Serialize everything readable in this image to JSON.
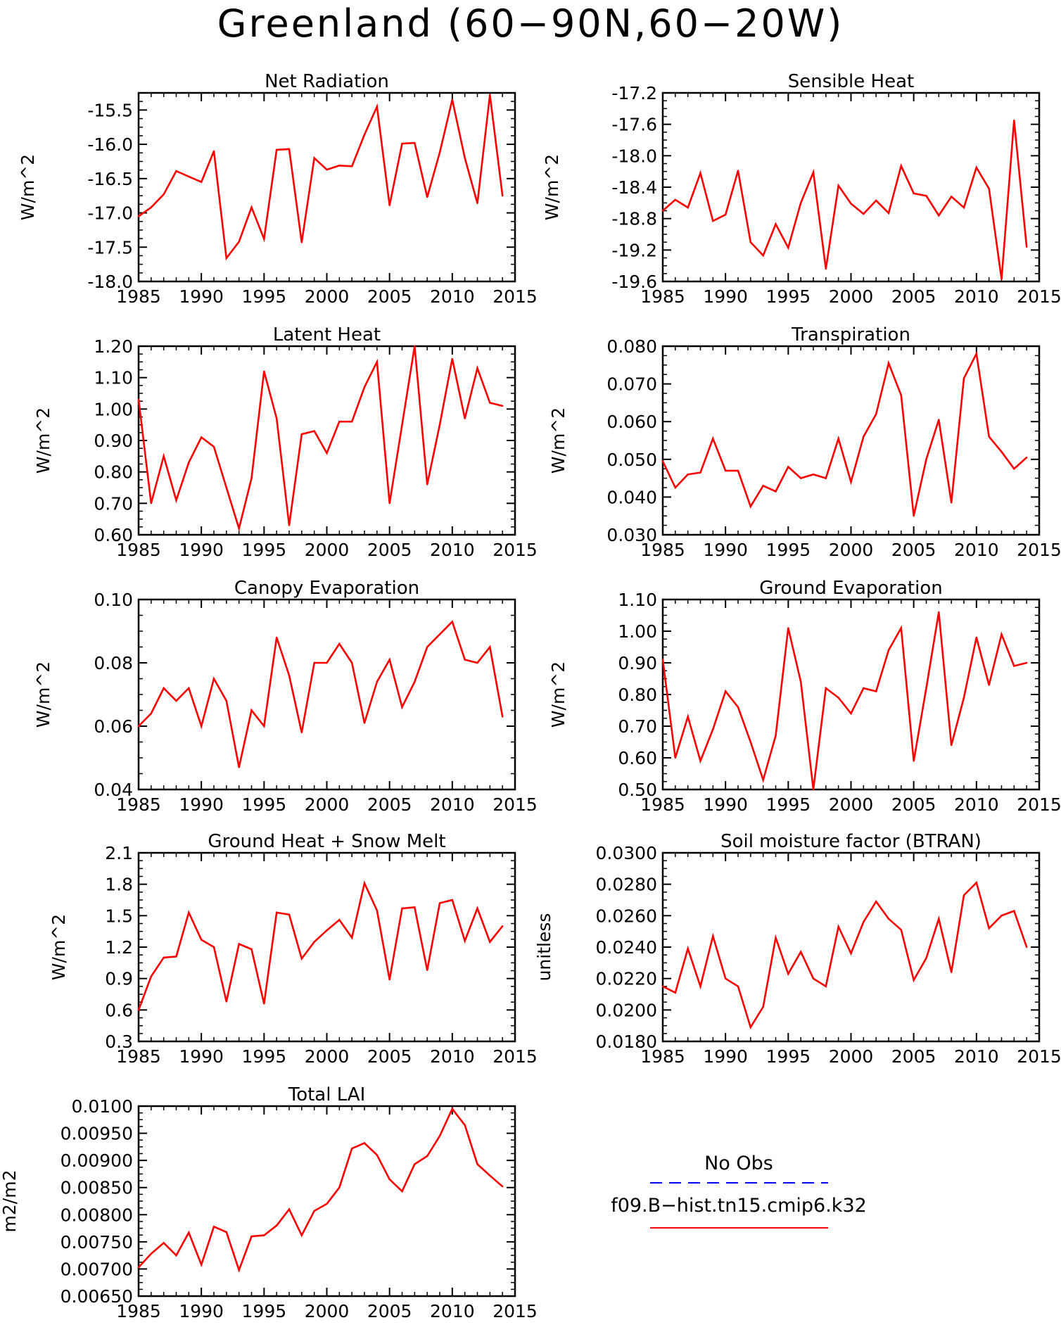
{
  "figure": {
    "title": "Greenland (60−90N,60−20W)"
  },
  "colors": {
    "model": "#ff0000",
    "obs": "#0000ff",
    "axes": "#000000"
  },
  "chart_data": [
    {
      "id": "net-radiation",
      "type": "line",
      "title": "Net Radiation",
      "ylabel": "W/m^2",
      "xlim": [
        1985,
        2015
      ],
      "ylim": [
        -18.0,
        -15.25
      ],
      "xticks": [
        1985,
        1990,
        1995,
        2000,
        2005,
        2010,
        2015
      ],
      "yticks": [
        "-18.0",
        "-17.5",
        "-17.0",
        "-16.5",
        "-16.0",
        "-15.5"
      ],
      "x": [
        1985,
        1986,
        1987,
        1988,
        1989,
        1990,
        1991,
        1992,
        1993,
        1994,
        1995,
        1996,
        1997,
        1998,
        1999,
        2000,
        2001,
        2002,
        2003,
        2004,
        2005,
        2006,
        2007,
        2008,
        2009,
        2010,
        2011,
        2012,
        2013,
        2014
      ],
      "series": [
        {
          "name": "f09.B−hist.tn15.cmip6.k32",
          "values": [
            -17.05,
            -16.92,
            -16.73,
            -16.39,
            -16.47,
            -16.55,
            -16.1,
            -17.66,
            -17.42,
            -16.92,
            -17.38,
            -16.08,
            -16.07,
            -17.43,
            -16.2,
            -16.37,
            -16.31,
            -16.32,
            -15.86,
            -15.45,
            -16.89,
            -15.99,
            -15.98,
            -16.77,
            -16.12,
            -15.35,
            -16.2,
            -16.86,
            -15.28,
            -16.75
          ]
        }
      ]
    },
    {
      "id": "sensible-heat",
      "type": "line",
      "title": "Sensible Heat",
      "ylabel": "W/m^2",
      "xlim": [
        1985,
        2015
      ],
      "ylim": [
        -19.6,
        -17.2
      ],
      "xticks": [
        1985,
        1990,
        1995,
        2000,
        2005,
        2010,
        2015
      ],
      "yticks": [
        "-19.6",
        "-19.2",
        "-18.8",
        "-18.4",
        "-18.0",
        "-17.6",
        "-17.2"
      ],
      "x": [
        1985,
        1986,
        1987,
        1988,
        1989,
        1990,
        1991,
        1992,
        1993,
        1994,
        1995,
        1996,
        1997,
        1998,
        1999,
        2000,
        2001,
        2002,
        2003,
        2004,
        2005,
        2006,
        2007,
        2008,
        2009,
        2010,
        2011,
        2012,
        2013,
        2014
      ],
      "series": [
        {
          "name": "f09.B−hist.tn15.cmip6.k32",
          "values": [
            -18.7,
            -18.56,
            -18.66,
            -18.22,
            -18.83,
            -18.75,
            -18.19,
            -19.1,
            -19.27,
            -18.87,
            -19.17,
            -18.6,
            -18.21,
            -19.44,
            -18.38,
            -18.61,
            -18.74,
            -18.57,
            -18.73,
            -18.13,
            -18.48,
            -18.51,
            -18.76,
            -18.52,
            -18.66,
            -18.15,
            -18.42,
            -19.57,
            -17.55,
            -19.16
          ]
        }
      ]
    },
    {
      "id": "latent-heat",
      "type": "line",
      "title": "Latent Heat",
      "ylabel": "W/m^2",
      "xlim": [
        1985,
        2015
      ],
      "ylim": [
        0.6,
        1.2
      ],
      "xticks": [
        1985,
        1990,
        1995,
        2000,
        2005,
        2010,
        2015
      ],
      "yticks": [
        "0.60",
        "0.70",
        "0.80",
        "0.90",
        "1.00",
        "1.10",
        "1.20"
      ],
      "x": [
        1985,
        1986,
        1987,
        1988,
        1989,
        1990,
        1991,
        1992,
        1993,
        1994,
        1995,
        1996,
        1997,
        1998,
        1999,
        2000,
        2001,
        2002,
        2003,
        2004,
        2005,
        2006,
        2007,
        2008,
        2009,
        2010,
        2011,
        2012,
        2013,
        2014
      ],
      "series": [
        {
          "name": "f09.B−hist.tn15.cmip6.k32",
          "values": [
            1.03,
            0.7,
            0.85,
            0.71,
            0.83,
            0.91,
            0.88,
            0.75,
            0.62,
            0.78,
            1.12,
            0.97,
            0.63,
            0.92,
            0.93,
            0.86,
            0.96,
            0.96,
            1.07,
            1.15,
            0.7,
            0.95,
            1.2,
            0.76,
            0.95,
            1.16,
            0.97,
            1.13,
            1.02,
            1.01
          ]
        }
      ]
    },
    {
      "id": "transpiration",
      "type": "line",
      "title": "Transpiration",
      "ylabel": "W/m^2",
      "xlim": [
        1985,
        2015
      ],
      "ylim": [
        0.03,
        0.08
      ],
      "xticks": [
        1985,
        1990,
        1995,
        2000,
        2005,
        2010,
        2015
      ],
      "yticks": [
        "0.030",
        "0.040",
        "0.050",
        "0.060",
        "0.070",
        "0.080"
      ],
      "x": [
        1985,
        1986,
        1987,
        1988,
        1989,
        1990,
        1991,
        1992,
        1993,
        1994,
        1995,
        1996,
        1997,
        1998,
        1999,
        2000,
        2001,
        2002,
        2003,
        2004,
        2005,
        2006,
        2007,
        2008,
        2009,
        2010,
        2011,
        2012,
        2013,
        2014
      ],
      "series": [
        {
          "name": "f09.B−hist.tn15.cmip6.k32",
          "values": [
            0.0495,
            0.0425,
            0.046,
            0.0465,
            0.0555,
            0.047,
            0.047,
            0.0375,
            0.043,
            0.0415,
            0.048,
            0.045,
            0.046,
            0.045,
            0.0555,
            0.044,
            0.056,
            0.062,
            0.0755,
            0.067,
            0.035,
            0.05,
            0.0605,
            0.0385,
            0.0715,
            0.078,
            0.056,
            0.052,
            0.0475,
            0.0505
          ]
        }
      ]
    },
    {
      "id": "canopy-evaporation",
      "type": "line",
      "title": "Canopy Evaporation",
      "ylabel": "W/m^2",
      "xlim": [
        1985,
        2015
      ],
      "ylim": [
        0.04,
        0.1
      ],
      "xticks": [
        1985,
        1990,
        1995,
        2000,
        2005,
        2010,
        2015
      ],
      "yticks": [
        "0.04",
        "0.06",
        "0.08",
        "0.10"
      ],
      "x": [
        1985,
        1986,
        1987,
        1988,
        1989,
        1990,
        1991,
        1992,
        1993,
        1994,
        1995,
        1996,
        1997,
        1998,
        1999,
        2000,
        2001,
        2002,
        2003,
        2004,
        2005,
        2006,
        2007,
        2008,
        2009,
        2010,
        2011,
        2012,
        2013,
        2014
      ],
      "series": [
        {
          "name": "f09.B−hist.tn15.cmip6.k32",
          "values": [
            0.06,
            0.064,
            0.072,
            0.068,
            0.072,
            0.06,
            0.075,
            0.068,
            0.047,
            0.065,
            0.06,
            0.088,
            0.076,
            0.058,
            0.08,
            0.08,
            0.086,
            0.08,
            0.061,
            0.074,
            0.081,
            0.066,
            0.074,
            0.085,
            0.089,
            0.093,
            0.081,
            0.08,
            0.085,
            0.063
          ]
        }
      ]
    },
    {
      "id": "ground-evaporation",
      "type": "line",
      "title": "Ground Evaporation",
      "ylabel": "W/m^2",
      "xlim": [
        1985,
        2015
      ],
      "ylim": [
        0.5,
        1.1
      ],
      "xticks": [
        1985,
        1990,
        1995,
        2000,
        2005,
        2010,
        2015
      ],
      "yticks": [
        "0.50",
        "0.60",
        "0.70",
        "0.80",
        "0.90",
        "1.00",
        "1.10"
      ],
      "x": [
        1985,
        1986,
        1987,
        1988,
        1989,
        1990,
        1991,
        1992,
        1993,
        1994,
        1995,
        1996,
        1997,
        1998,
        1999,
        2000,
        2001,
        2002,
        2003,
        2004,
        2005,
        2006,
        2007,
        2008,
        2009,
        2010,
        2011,
        2012,
        2013,
        2014
      ],
      "series": [
        {
          "name": "f09.B−hist.tn15.cmip6.k32",
          "values": [
            0.91,
            0.6,
            0.73,
            0.59,
            0.69,
            0.81,
            0.76,
            0.65,
            0.53,
            0.67,
            1.01,
            0.84,
            0.5,
            0.82,
            0.79,
            0.74,
            0.82,
            0.81,
            0.94,
            1.01,
            0.59,
            0.82,
            1.06,
            0.64,
            0.79,
            0.98,
            0.83,
            0.99,
            0.89,
            0.9
          ]
        }
      ]
    },
    {
      "id": "ground-heat-snow-melt",
      "type": "line",
      "title": "Ground Heat + Snow Melt",
      "ylabel": "W/m^2",
      "xlim": [
        1985,
        2015
      ],
      "ylim": [
        0.3,
        2.1
      ],
      "xticks": [
        1985,
        1990,
        1995,
        2000,
        2005,
        2010,
        2015
      ],
      "yticks": [
        "0.3",
        "0.6",
        "0.9",
        "1.2",
        "1.5",
        "1.8",
        "2.1"
      ],
      "x": [
        1985,
        1986,
        1987,
        1988,
        1989,
        1990,
        1991,
        1992,
        1993,
        1994,
        1995,
        1996,
        1997,
        1998,
        1999,
        2000,
        2001,
        2002,
        2003,
        2004,
        2005,
        2006,
        2007,
        2008,
        2009,
        2010,
        2011,
        2012,
        2013,
        2014
      ],
      "series": [
        {
          "name": "f09.B−hist.tn15.cmip6.k32",
          "values": [
            0.6,
            0.92,
            1.1,
            1.11,
            1.53,
            1.27,
            1.2,
            0.68,
            1.23,
            1.18,
            0.66,
            1.53,
            1.51,
            1.09,
            1.25,
            1.36,
            1.46,
            1.29,
            1.81,
            1.55,
            0.89,
            1.57,
            1.58,
            0.98,
            1.62,
            1.65,
            1.26,
            1.57,
            1.25,
            1.4
          ]
        }
      ]
    },
    {
      "id": "soil-moisture-factor",
      "type": "line",
      "title": "Soil moisture factor (BTRAN)",
      "ylabel": "unitless",
      "xlim": [
        1985,
        2015
      ],
      "ylim": [
        0.018,
        0.03
      ],
      "xticks": [
        1985,
        1990,
        1995,
        2000,
        2005,
        2010,
        2015
      ],
      "yticks": [
        "0.0180",
        "0.0200",
        "0.0220",
        "0.0240",
        "0.0260",
        "0.0280",
        "0.0300"
      ],
      "x": [
        1985,
        1986,
        1987,
        1988,
        1989,
        1990,
        1991,
        1992,
        1993,
        1994,
        1995,
        1996,
        1997,
        1998,
        1999,
        2000,
        2001,
        2002,
        2003,
        2004,
        2005,
        2006,
        2007,
        2008,
        2009,
        2010,
        2011,
        2012,
        2013,
        2014
      ],
      "series": [
        {
          "name": "f09.B−hist.tn15.cmip6.k32",
          "values": [
            0.0215,
            0.0211,
            0.0239,
            0.0215,
            0.0247,
            0.022,
            0.0215,
            0.0189,
            0.0202,
            0.0246,
            0.0223,
            0.0237,
            0.022,
            0.0215,
            0.0253,
            0.0236,
            0.0256,
            0.0269,
            0.0258,
            0.0251,
            0.0219,
            0.0233,
            0.0258,
            0.0224,
            0.0273,
            0.0281,
            0.0252,
            0.026,
            0.0263,
            0.024
          ]
        }
      ]
    },
    {
      "id": "total-lai",
      "type": "line",
      "title": "Total LAI",
      "ylabel": "m2/m2",
      "xlim": [
        1985,
        2015
      ],
      "ylim": [
        0.0065,
        0.01
      ],
      "xticks": [
        1985,
        1990,
        1995,
        2000,
        2005,
        2010,
        2015
      ],
      "yticks": [
        "0.00650",
        "0.00700",
        "0.00750",
        "0.00800",
        "0.00850",
        "0.00900",
        "0.00950",
        "0.0100"
      ],
      "x": [
        1985,
        1986,
        1987,
        1988,
        1989,
        1990,
        1991,
        1992,
        1993,
        1994,
        1995,
        1996,
        1997,
        1998,
        1999,
        2000,
        2001,
        2002,
        2003,
        2004,
        2005,
        2006,
        2007,
        2008,
        2009,
        2010,
        2011,
        2012,
        2013,
        2014
      ],
      "series": [
        {
          "name": "f09.B−hist.tn15.cmip6.k32",
          "values": [
            0.00703,
            0.00728,
            0.00748,
            0.00725,
            0.00767,
            0.00708,
            0.00778,
            0.00768,
            0.00698,
            0.0076,
            0.00762,
            0.0078,
            0.0081,
            0.00762,
            0.00807,
            0.0082,
            0.0085,
            0.00922,
            0.00932,
            0.0091,
            0.00865,
            0.00843,
            0.00893,
            0.00908,
            0.00945,
            0.00995,
            0.00965,
            0.00893,
            0.00872,
            0.00852
          ]
        }
      ]
    }
  ],
  "legend": {
    "obs_label": "No Obs",
    "model_label": "f09.B−hist.tn15.cmip6.k32"
  }
}
